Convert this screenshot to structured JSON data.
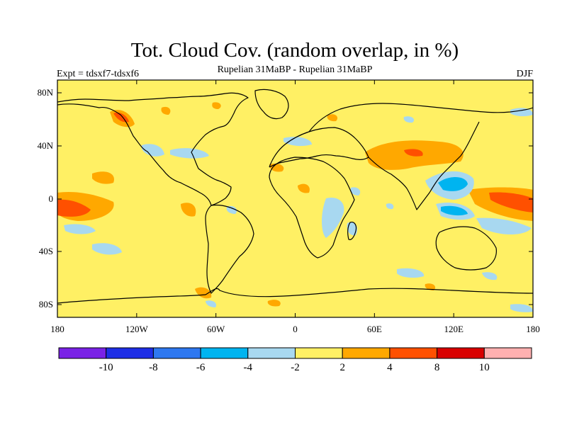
{
  "title": "Tot. Cloud Cov. (random overlap, in %)",
  "subtitle": "Rupelian  31MaBP - Rupelian  31MaBP",
  "expt_label": "Expt = tdsxf7-tdsxf6",
  "season": "DJF",
  "lat_ticks": [
    "80N",
    "40N",
    "0",
    "40S",
    "80S"
  ],
  "lon_ticks": [
    "180",
    "120W",
    "60W",
    "0",
    "60E",
    "120E",
    "180"
  ],
  "colorbar": {
    "colors": [
      "#7a22e6",
      "#1e2ee6",
      "#2e78f0",
      "#00b4f0",
      "#a8d8f0",
      "#fff064",
      "#ffa800",
      "#ff5000",
      "#d80000",
      "#ffb0b0"
    ],
    "labels": [
      "-10",
      "-8",
      "-6",
      "-4",
      "-2",
      "2",
      "4",
      "8",
      "10"
    ]
  },
  "background_color": "#fff064",
  "coastline_color": "#000000"
}
